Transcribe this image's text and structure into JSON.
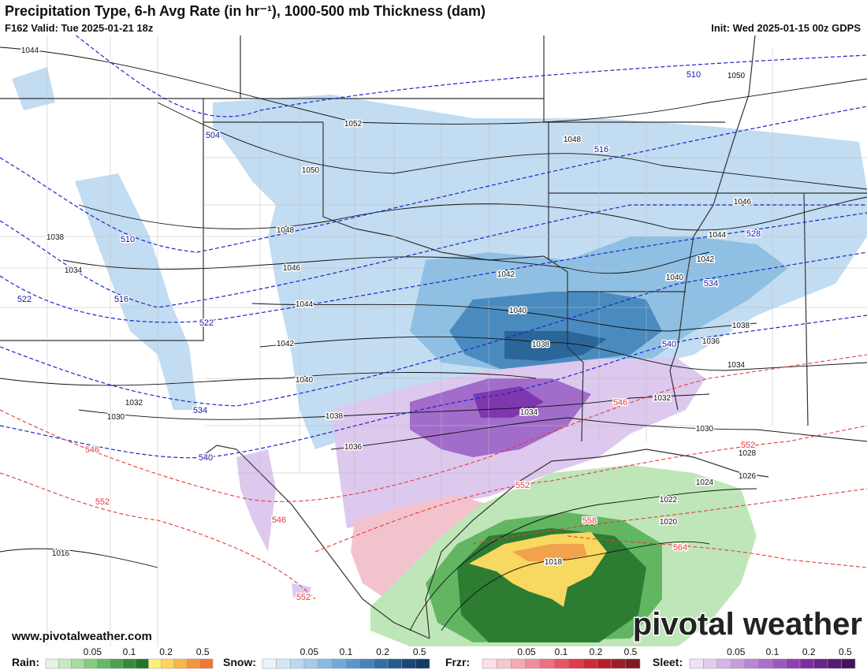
{
  "header": {
    "title": "Precipitation Type, 6-h Avg Rate (in hr⁻¹), 1000-500 mb Thickness (dam)",
    "valid": "F162 Valid: Tue 2025-01-21 18z",
    "init": "Init: Wed 2025-01-15 00z GDPS"
  },
  "map": {
    "isobar_labels": [
      "1044",
      "1052",
      "1050",
      "1048",
      "1050",
      "1046",
      "1038",
      "1048",
      "1044",
      "1034",
      "1046",
      "1042",
      "1042",
      "1040",
      "1044",
      "1040",
      "1038",
      "1042",
      "1038",
      "1036",
      "1034",
      "1040",
      "1032",
      "1030",
      "1034",
      "1032",
      "1038",
      "1036",
      "1030",
      "1028",
      "1024",
      "1026",
      "1022",
      "1020",
      "1018",
      "1016"
    ],
    "cold_thickness_labels": [
      "510",
      "504",
      "516",
      "510",
      "528",
      "516",
      "534",
      "522",
      "522",
      "540",
      "534",
      "540"
    ],
    "warm_thickness_labels": [
      "546",
      "546",
      "552",
      "552",
      "552",
      "546",
      "558",
      "564",
      "552"
    ]
  },
  "footer": {
    "url": "www.pivotalweather.com",
    "logo": "pivotal weather"
  },
  "legend": [
    {
      "label": "Rain:",
      "ticks": [
        "0.05",
        "0.1",
        "0.2",
        "0.5"
      ],
      "colors": [
        "#e3f5df",
        "#c6eabf",
        "#a6dc9f",
        "#86cc80",
        "#67b865",
        "#4ca24d",
        "#358b3a",
        "#237429",
        "#ffef7a",
        "#fdd45e",
        "#f9b54c",
        "#f39542",
        "#ef7637"
      ]
    },
    {
      "label": "Snow:",
      "ticks": [
        "0.05",
        "0.1",
        "0.2",
        "0.5"
      ],
      "colors": [
        "#eaf4fb",
        "#d2e7f6",
        "#bbdaf1",
        "#a2cbea",
        "#8abbe1",
        "#72a9d6",
        "#5b96c8",
        "#4682b7",
        "#336ea4",
        "#245a8e",
        "#1b4776",
        "#153a63"
      ]
    },
    {
      "label": "Frzr:",
      "ticks": [
        "0.05",
        "0.1",
        "0.2",
        "0.5"
      ],
      "colors": [
        "#fbe0e6",
        "#f7c6cf",
        "#f2aab7",
        "#ee8e9c",
        "#ea7181",
        "#e65565",
        "#e03b48",
        "#cf2a33",
        "#b51f2a",
        "#962026",
        "#7a1c22"
      ]
    },
    {
      "label": "Sleet:",
      "ticks": [
        "0.05",
        "0.1",
        "0.2",
        "0.5"
      ],
      "colors": [
        "#efe2f6",
        "#e1ccef",
        "#d3b5e7",
        "#c59ede",
        "#b786d5",
        "#a96fcb",
        "#9b57c0",
        "#8c40b3",
        "#7b2ea0",
        "#67248a",
        "#531c73",
        "#401559"
      ]
    }
  ]
}
